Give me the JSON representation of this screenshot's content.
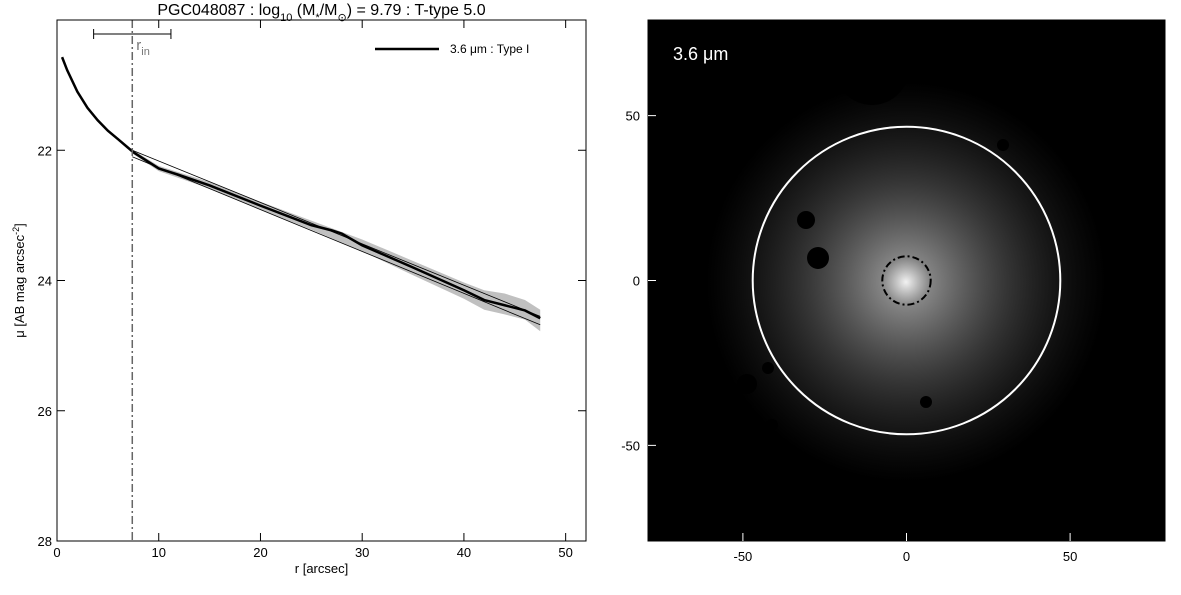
{
  "chart_data": [
    {
      "type": "line",
      "title_parts": [
        {
          "text": "PGC048087 : log",
          "sub": false
        },
        {
          "text": "10",
          "sub": true
        },
        {
          "text": " (M",
          "sub": false
        },
        {
          "text": "*",
          "sub": true
        },
        {
          "text": "/M",
          "sub": false
        },
        {
          "text": "⊙",
          "sub": true
        },
        {
          "text": ") = 9.79 : T-type 5.0",
          "sub": false
        }
      ],
      "xlabel": "r [arcsec]",
      "ylabel_parts": [
        {
          "text": "μ [AB mag arcsec",
          "sup": false
        },
        {
          "text": "-2",
          "sup": true
        },
        {
          "text": "]",
          "sup": false
        }
      ],
      "xlim": [
        0,
        52
      ],
      "ylim": [
        20,
        28
      ],
      "y_inverted": true,
      "xticks": [
        0,
        10,
        20,
        30,
        40,
        50
      ],
      "yticks": [
        22,
        24,
        26,
        28
      ],
      "legend": "upper right",
      "series": [
        {
          "name": "3.6 μm : Type I",
          "color": "#000000",
          "x": [
            0.5,
            1,
            2,
            3,
            4,
            5,
            6,
            7.5,
            10,
            12,
            15,
            20,
            25,
            27,
            28,
            30,
            35,
            40,
            42,
            44,
            46,
            47.5
          ],
          "values": [
            20.57,
            20.77,
            21.1,
            21.35,
            21.54,
            21.7,
            21.83,
            22.03,
            22.28,
            22.38,
            22.54,
            22.85,
            23.15,
            23.23,
            23.28,
            23.46,
            23.8,
            24.15,
            24.3,
            24.38,
            24.46,
            24.58
          ]
        }
      ],
      "band": {
        "color": "#c0c0c0",
        "x": [
          7.5,
          10,
          15,
          20,
          25,
          30,
          35,
          40,
          42,
          44,
          46,
          47.5
        ],
        "lower": [
          22.0,
          22.24,
          22.49,
          22.79,
          23.08,
          23.37,
          23.7,
          24.03,
          24.15,
          24.2,
          24.3,
          24.45
        ],
        "upper": [
          22.06,
          22.32,
          22.59,
          22.91,
          23.22,
          23.55,
          23.92,
          24.28,
          24.45,
          24.52,
          24.6,
          24.78
        ]
      },
      "fits": [
        {
          "x": [
            7.4,
            47.5
          ],
          "values": [
            22.0,
            24.55
          ]
        },
        {
          "x": [
            7.4,
            47.5
          ],
          "values": [
            22.1,
            24.68
          ]
        }
      ],
      "r_in": 7.4,
      "r_in_range": [
        3.6,
        11.2
      ],
      "r_in_label": {
        "main": "r",
        "sub": "in"
      }
    },
    {
      "type": "image",
      "label": "3.6 μm",
      "xlim": [
        -79,
        79
      ],
      "ylim": [
        -79,
        79
      ],
      "xticks": [
        -50,
        0,
        50
      ],
      "yticks": [
        -50,
        0,
        50
      ],
      "aperture_radius": 47,
      "inner_radius": 7.4
    }
  ]
}
